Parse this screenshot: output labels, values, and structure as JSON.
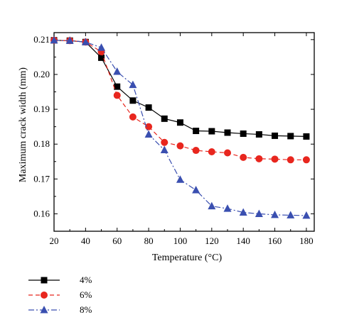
{
  "chart_data": {
    "type": "line",
    "xlabel": "Temperature (°C)",
    "ylabel": "Maximum crack width (mm)",
    "xlim": [
      20,
      185
    ],
    "ylim": [
      0.155,
      0.212
    ],
    "xticks": [
      20,
      40,
      60,
      80,
      100,
      120,
      140,
      160,
      180
    ],
    "yticks": [
      0.16,
      0.17,
      0.18,
      0.19,
      0.2,
      0.21
    ],
    "ytick_labels": [
      "0.16",
      "0.17",
      "0.18",
      "0.19",
      "0.20",
      "0.21"
    ],
    "grid": false,
    "legend_position": "bottom-left, below plot",
    "x": [
      20,
      30,
      40,
      50,
      60,
      70,
      80,
      90,
      100,
      110,
      120,
      130,
      140,
      150,
      160,
      170,
      180
    ],
    "series": [
      {
        "name": "4%",
        "color": "#000000",
        "marker": "square",
        "line_style": "solid",
        "values": [
          0.2098,
          0.2097,
          0.2093,
          0.2048,
          0.1965,
          0.1925,
          0.1905,
          0.1873,
          0.1862,
          0.1838,
          0.1837,
          0.1833,
          0.183,
          0.1828,
          0.1824,
          0.1823,
          0.1822
        ]
      },
      {
        "name": "6%",
        "color": "#e8261e",
        "marker": "circle",
        "line_style": "dashed",
        "values": [
          0.2098,
          0.2097,
          0.2093,
          0.2065,
          0.194,
          0.1878,
          0.185,
          0.1805,
          0.1795,
          0.1782,
          0.1778,
          0.1775,
          0.1762,
          0.1758,
          0.1757,
          0.1755,
          0.1755
        ]
      },
      {
        "name": "8%",
        "color": "#3a4fb0",
        "marker": "triangle",
        "line_style": "dash-dot",
        "values": [
          0.2098,
          0.2097,
          0.2093,
          0.2077,
          0.2008,
          0.197,
          0.1828,
          0.1783,
          0.1698,
          0.1668,
          0.1622,
          0.1615,
          0.1604,
          0.16,
          0.1597,
          0.1596,
          0.1595
        ]
      }
    ]
  }
}
